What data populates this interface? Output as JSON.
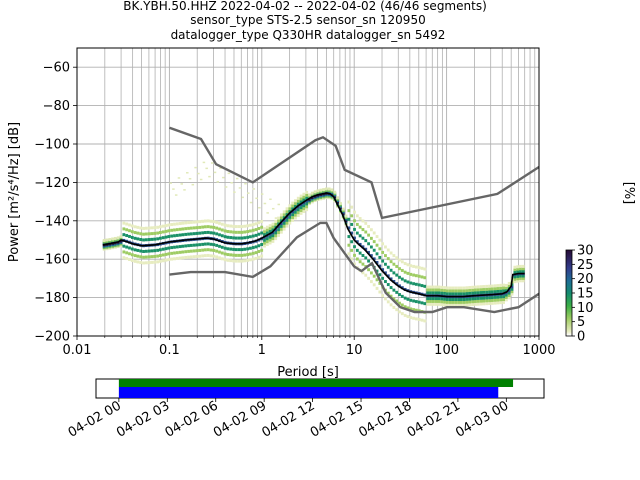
{
  "title": {
    "line1": "BK.YBH.50.HHZ   2022-04-02 -- 2022-04-02  (46/46 segments)",
    "line2": "sensor_type STS-2.5 sensor_sn 120950",
    "line3": "datalogger_type Q330HR datalogger_sn 5492"
  },
  "chart_data": [
    {
      "type": "heatmap",
      "xlabel": "Period [s]",
      "ylabel": "Power [m²/s⁴/Hz] [dB]",
      "xscale": "log",
      "xlim": [
        0.01,
        1000
      ],
      "ylim": [
        -200,
        -50
      ],
      "xticks": [
        0.01,
        0.1,
        1,
        10,
        100,
        1000
      ],
      "xtick_labels": [
        "0.01",
        "0.1",
        "1",
        "10",
        "100",
        "1000"
      ],
      "yticks": [
        -200,
        -180,
        -160,
        -140,
        -120,
        -100,
        -80,
        -60
      ],
      "ytick_labels": [
        "−200",
        "−180",
        "−160",
        "−140",
        "−120",
        "−100",
        "−80",
        "−60"
      ],
      "grid": true,
      "colorbar": {
        "label": "[%]",
        "range": [
          0,
          30
        ],
        "ticks": [
          0,
          5,
          10,
          15,
          20,
          25,
          30
        ],
        "colormap": "pqlx"
      },
      "series": [
        {
          "name": "NHNM",
          "color": "#666666",
          "x": [
            0.1,
            0.22,
            0.32,
            0.8,
            3.8,
            4.6,
            6.3,
            7.9,
            15.4,
            20,
            354.8,
            1000
          ],
          "y": [
            -91.5,
            -97.4,
            -110.5,
            -120,
            -98,
            -96.5,
            -101,
            -113.5,
            -120,
            -138.5,
            -126,
            -112
          ]
        },
        {
          "name": "NLNM",
          "color": "#666666",
          "x": [
            0.1,
            0.17,
            0.4,
            0.8,
            1.24,
            2.4,
            4.3,
            5,
            6,
            10,
            12,
            15.6,
            21.9,
            31.6,
            45,
            70,
            101,
            154,
            328,
            600,
            1000
          ],
          "y": [
            -168,
            -166.7,
            -166.7,
            -169.2,
            -163.7,
            -148.6,
            -141.1,
            -141.1,
            -149,
            -163.8,
            -166.2,
            -162.1,
            -177.5,
            -185,
            -187.5,
            -187.5,
            -185,
            -185,
            -187.5,
            -185,
            -178
          ]
        },
        {
          "name": "mean",
          "color": "#000000",
          "x": [
            0.019,
            0.022,
            0.028,
            0.03,
            0.035,
            0.04,
            0.05,
            0.07,
            0.1,
            0.15,
            0.2,
            0.25,
            0.3,
            0.4,
            0.5,
            0.6,
            0.7,
            0.85,
            1.0,
            1.3,
            1.6,
            2.0,
            2.5,
            3.0,
            3.5,
            4.0,
            4.5,
            5.0,
            5.5,
            6.0,
            6.5,
            7.5,
            8.5,
            10,
            11,
            13,
            16,
            20,
            25,
            30,
            35,
            40,
            50,
            60,
            80,
            100,
            150,
            200,
            300,
            400,
            450,
            500,
            520,
            600,
            700
          ],
          "y": [
            -152.5,
            -152,
            -151,
            -150,
            -151,
            -152,
            -153,
            -152.5,
            -151,
            -150,
            -149.5,
            -149,
            -149.5,
            -151.5,
            -152,
            -152,
            -151.5,
            -150.5,
            -149,
            -146,
            -141,
            -136,
            -132,
            -129.5,
            -127.5,
            -126.5,
            -126,
            -125.5,
            -126,
            -127.5,
            -131,
            -137,
            -144,
            -150,
            -152,
            -155,
            -160,
            -166,
            -171,
            -174,
            -176,
            -177,
            -178,
            -179,
            -179,
            -179.5,
            -179.5,
            -179,
            -178.5,
            -178,
            -177,
            -174,
            -168,
            -167.5,
            -167.5
          ]
        }
      ]
    },
    {
      "type": "bar",
      "subtype": "time_coverage",
      "xlim": [
        "2022-04-01 22:35",
        "2022-04-03 02:20"
      ],
      "xtick_labels": [
        "04-02 00",
        "04-02 03",
        "04-02 06",
        "04-02 09",
        "04-02 12",
        "04-02 15",
        "04-02 18",
        "04-02 21",
        "04-03 00"
      ],
      "series": [
        {
          "name": "data",
          "color": "#008000",
          "start": "2022-04-02 00:00",
          "end": "2022-04-03 00:25"
        },
        {
          "name": "psd",
          "color": "#0000ff",
          "start": "2022-04-02 00:00",
          "end": "2022-04-02 23:30"
        }
      ]
    }
  ]
}
